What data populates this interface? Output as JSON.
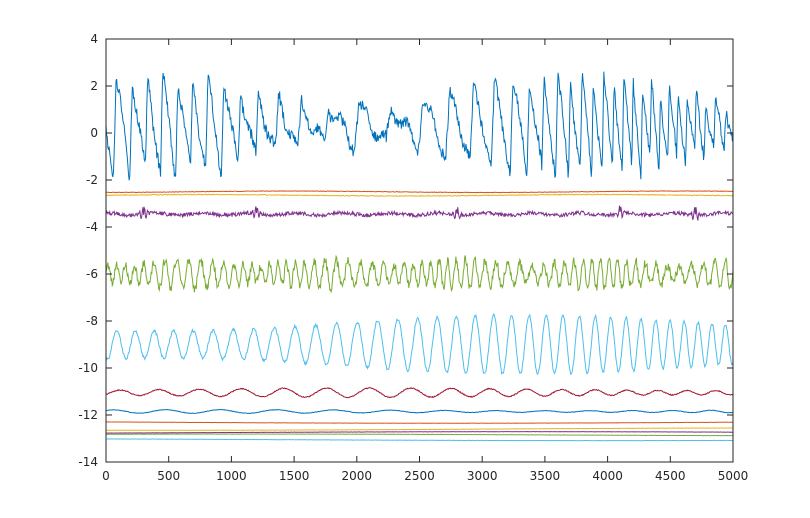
{
  "chart_data": {
    "type": "line",
    "title": "",
    "xlabel": "",
    "ylabel": "",
    "xlim": [
      0,
      5000
    ],
    "ylim": [
      -14,
      4
    ],
    "grid": false,
    "legend": "none",
    "x_ticks": [
      0,
      500,
      1000,
      1500,
      2000,
      2500,
      3000,
      3500,
      4000,
      4500,
      5000
    ],
    "y_ticks": [
      4,
      2,
      0,
      -2,
      -4,
      -6,
      -8,
      -10,
      -12,
      -14
    ],
    "x_tick_labels": [
      "0",
      "500",
      "1000",
      "1500",
      "2000",
      "2500",
      "3000",
      "3500",
      "4000",
      "4500",
      "5000"
    ],
    "y_tick_labels": [
      "4",
      "2",
      "0",
      "-2",
      "-4",
      "-6",
      "-8",
      "-10",
      "-12",
      "-14"
    ],
    "series": [
      {
        "color": "#0072bd",
        "offset": 0.3,
        "kind": "sawtooth",
        "period": 145,
        "amplitude": 1.9,
        "noise": 0.25,
        "seed": 1
      },
      {
        "color": "#d95319",
        "offset": -2.5,
        "kind": "flat",
        "amplitude": 0.03,
        "noise": 0.01,
        "seed": 2
      },
      {
        "color": "#edb120",
        "offset": -2.65,
        "kind": "flat",
        "amplitude": 0.03,
        "noise": 0.015,
        "seed": 3
      },
      {
        "color": "#7e2f8e",
        "offset": -3.45,
        "kind": "spiky",
        "amplitude": 0.05,
        "noise": 0.08,
        "seed": 4
      },
      {
        "color": "#77ac30",
        "offset": -6.0,
        "kind": "burst",
        "period": 80,
        "amplitude": 0.55,
        "noise": 0.2,
        "seed": 5
      },
      {
        "color": "#4dbeee",
        "offset": -9.0,
        "kind": "wave",
        "period": 145,
        "amplitude": 1.15,
        "noise": 0.06,
        "seed": 6
      },
      {
        "color": "#a2142f",
        "offset": -11.05,
        "kind": "wave",
        "period": 300,
        "amplitude": 0.18,
        "noise": 0.02,
        "seed": 7
      },
      {
        "color": "#0072bd",
        "offset": -11.85,
        "kind": "wave",
        "period": 400,
        "amplitude": 0.07,
        "noise": 0.01,
        "seed": 8
      },
      {
        "color": "#d95319",
        "offset": -12.3,
        "kind": "drift",
        "amplitude": 0.05,
        "noise": 0.005,
        "seed": 9
      },
      {
        "color": "#edb120",
        "offset": -12.6,
        "kind": "drift",
        "amplitude": 0.05,
        "noise": 0.005,
        "seed": 10
      },
      {
        "color": "#7e2f8e",
        "offset": -12.75,
        "kind": "drift",
        "amplitude": 0.04,
        "noise": 0.005,
        "seed": 11
      },
      {
        "color": "#77ac30",
        "offset": -12.85,
        "kind": "drift",
        "amplitude": 0.04,
        "noise": 0.005,
        "seed": 12
      },
      {
        "color": "#4dbeee",
        "offset": -13.05,
        "kind": "drift",
        "amplitude": 0.04,
        "noise": 0.005,
        "seed": 13
      }
    ]
  }
}
